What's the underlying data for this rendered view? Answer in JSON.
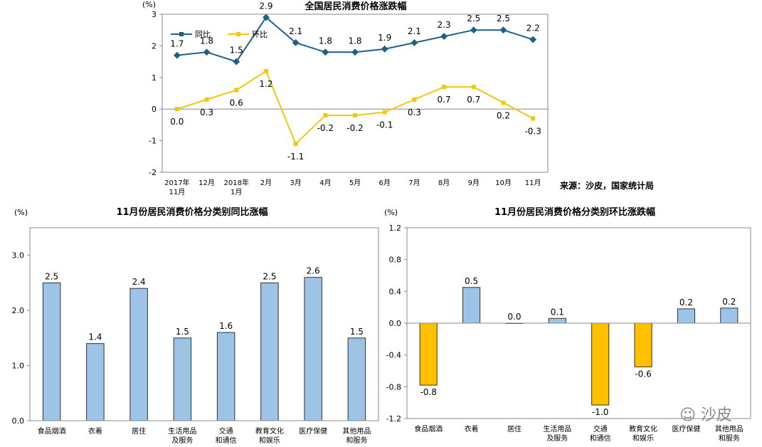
{
  "source_note": "来源：沙皮，国家统计局",
  "watermark": "沙皮",
  "chart_data": [
    {
      "type": "line",
      "title": "全国居民消费价格涨跌幅",
      "ylabel": "(%)",
      "ylim": [
        -2,
        3
      ],
      "yticks": [
        "-2",
        "-1",
        "0",
        "1",
        "2",
        "3"
      ],
      "categories": [
        [
          "2017年",
          "11月"
        ],
        [
          "12月"
        ],
        [
          "2018年",
          "1月"
        ],
        [
          "2月"
        ],
        [
          "3月"
        ],
        [
          "4月"
        ],
        [
          "5月"
        ],
        [
          "6月"
        ],
        [
          "7月"
        ],
        [
          "8月"
        ],
        [
          "9月"
        ],
        [
          "10月"
        ],
        [
          "11月"
        ]
      ],
      "legend": "top-left",
      "series": [
        {
          "name": "同比",
          "color": "#1F5F8B",
          "values": [
            1.7,
            1.8,
            1.5,
            2.9,
            2.1,
            1.8,
            1.8,
            1.9,
            2.1,
            2.3,
            2.5,
            2.5,
            2.2
          ],
          "labels": [
            "1.7",
            "1.8",
            "1.5",
            "2.9",
            "2.1",
            "1.8",
            "1.8",
            "1.9",
            "2.1",
            "2.3",
            "2.5",
            "2.5",
            "2.2"
          ]
        },
        {
          "name": "环比",
          "color": "#F2C80F",
          "values": [
            0.0,
            0.3,
            0.6,
            1.2,
            -1.1,
            -0.2,
            -0.2,
            -0.1,
            0.3,
            0.7,
            0.7,
            0.2,
            -0.3
          ],
          "labels": [
            "0.0",
            "0.3",
            "0.6",
            "1.2",
            "-1.1",
            "-0.2",
            "-0.2",
            "-0.1",
            "0.3",
            "0.7",
            "0.7",
            "0.2",
            "-0.3"
          ]
        }
      ]
    },
    {
      "type": "bar",
      "title": "11月份居民消费价格分类别同比涨幅",
      "ylabel": "(%)",
      "ylim": [
        0,
        3.5
      ],
      "yticks": [
        "0.0",
        "1.0",
        "2.0",
        "3.0"
      ],
      "categories": [
        [
          "食品烟酒"
        ],
        [
          "衣着"
        ],
        [
          "居住"
        ],
        [
          "生活用品",
          "及服务"
        ],
        [
          "交通",
          "和通信"
        ],
        [
          "教育文化",
          "和娱乐"
        ],
        [
          "医疗保健"
        ],
        [
          "其他用品",
          "和服务"
        ]
      ],
      "values": [
        2.5,
        1.4,
        2.4,
        1.5,
        1.6,
        2.5,
        2.6,
        1.5
      ],
      "labels": [
        "2.5",
        "1.4",
        "2.4",
        "1.5",
        "1.6",
        "2.5",
        "2.6",
        "1.5"
      ],
      "colors": {
        "positive": "#9DC3E6",
        "negative": "#FFC000"
      }
    },
    {
      "type": "bar",
      "title": "11月份居民消费价格分类别环比涨跌幅",
      "ylabel": "(%)",
      "ylim": [
        -1.2,
        1.2
      ],
      "yticks": [
        "-1.2",
        "-0.8",
        "-0.4",
        "0.0",
        "0.4",
        "0.8",
        "1.2"
      ],
      "categories": [
        [
          "食品烟酒"
        ],
        [
          "衣着"
        ],
        [
          "居住"
        ],
        [
          "生活用品",
          "及服务"
        ],
        [
          "交通",
          "和通信"
        ],
        [
          "教育文化",
          "和娱乐"
        ],
        [
          "医疗保健"
        ],
        [
          "其他用品",
          "和服务"
        ]
      ],
      "values": [
        -0.78,
        0.45,
        0.0,
        0.06,
        -1.03,
        -0.55,
        0.18,
        0.19
      ],
      "labels": [
        "-0.8",
        "0.5",
        "0.0",
        "0.1",
        "-1.0",
        "-0.6",
        "0.2",
        "0.2"
      ],
      "colors": {
        "positive": "#9DC3E6",
        "negative": "#FFC000"
      }
    }
  ]
}
